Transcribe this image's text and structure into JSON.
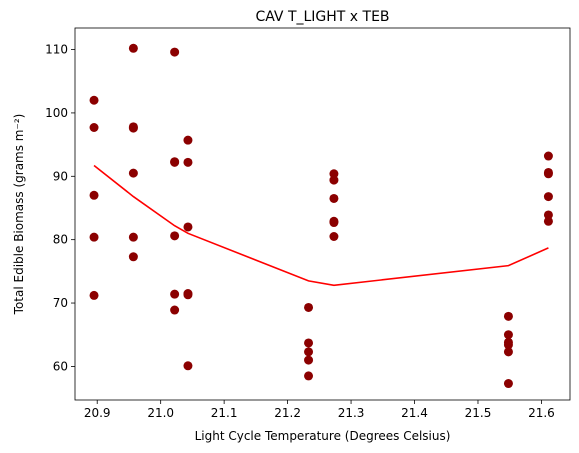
{
  "chart_data": {
    "type": "scatter",
    "title": "CAV T_LIGHT x TEB",
    "xlabel": "Light Cycle Temperature (Degrees Celsius)",
    "ylabel": "Total Edible Biomass (grams m⁻²)",
    "xlim": [
      20.865,
      21.645
    ],
    "ylim": [
      54.7,
      113.4
    ],
    "xticks": [
      20.9,
      21.0,
      21.1,
      21.2,
      21.3,
      21.4,
      21.5,
      21.6
    ],
    "xtick_labels": [
      "20.9",
      "21.0",
      "21.1",
      "21.2",
      "21.3",
      "21.4",
      "21.5",
      "21.6"
    ],
    "yticks": [
      60,
      70,
      80,
      90,
      100,
      110
    ],
    "ytick_labels": [
      "60",
      "70",
      "80",
      "90",
      "100",
      "110"
    ],
    "grid": false,
    "series": [
      {
        "kind": "scatter",
        "color": "#8b0000",
        "points": [
          [
            20.895,
            102.0
          ],
          [
            20.895,
            97.7
          ],
          [
            20.895,
            87.0
          ],
          [
            20.895,
            80.4
          ],
          [
            20.895,
            71.2
          ],
          [
            20.957,
            110.2
          ],
          [
            20.957,
            97.8
          ],
          [
            20.957,
            97.6
          ],
          [
            20.957,
            90.5
          ],
          [
            20.957,
            80.4
          ],
          [
            20.957,
            77.3
          ],
          [
            21.022,
            109.6
          ],
          [
            21.022,
            92.3
          ],
          [
            21.022,
            92.2
          ],
          [
            21.022,
            80.6
          ],
          [
            21.022,
            71.4
          ],
          [
            21.022,
            68.9
          ],
          [
            21.043,
            95.7
          ],
          [
            21.043,
            92.2
          ],
          [
            21.043,
            82.0
          ],
          [
            21.043,
            71.5
          ],
          [
            21.043,
            71.3
          ],
          [
            21.043,
            60.1
          ],
          [
            21.233,
            69.3
          ],
          [
            21.233,
            63.7
          ],
          [
            21.233,
            62.3
          ],
          [
            21.233,
            61.0
          ],
          [
            21.233,
            58.5
          ],
          [
            21.273,
            90.4
          ],
          [
            21.273,
            89.4
          ],
          [
            21.273,
            86.5
          ],
          [
            21.273,
            82.9
          ],
          [
            21.273,
            82.7
          ],
          [
            21.273,
            80.5
          ],
          [
            21.548,
            67.9
          ],
          [
            21.548,
            65.0
          ],
          [
            21.548,
            63.8
          ],
          [
            21.548,
            63.4
          ],
          [
            21.548,
            62.3
          ],
          [
            21.548,
            57.3
          ],
          [
            21.611,
            93.2
          ],
          [
            21.611,
            90.6
          ],
          [
            21.611,
            90.4
          ],
          [
            21.611,
            86.8
          ],
          [
            21.611,
            83.9
          ],
          [
            21.611,
            82.9
          ]
        ]
      },
      {
        "kind": "line",
        "color": "#ff0000",
        "points": [
          [
            20.895,
            91.7
          ],
          [
            20.957,
            86.8
          ],
          [
            21.022,
            82.2
          ],
          [
            21.043,
            81.0
          ],
          [
            21.233,
            73.5
          ],
          [
            21.273,
            72.8
          ],
          [
            21.548,
            75.9
          ],
          [
            21.611,
            78.7
          ]
        ]
      }
    ]
  }
}
